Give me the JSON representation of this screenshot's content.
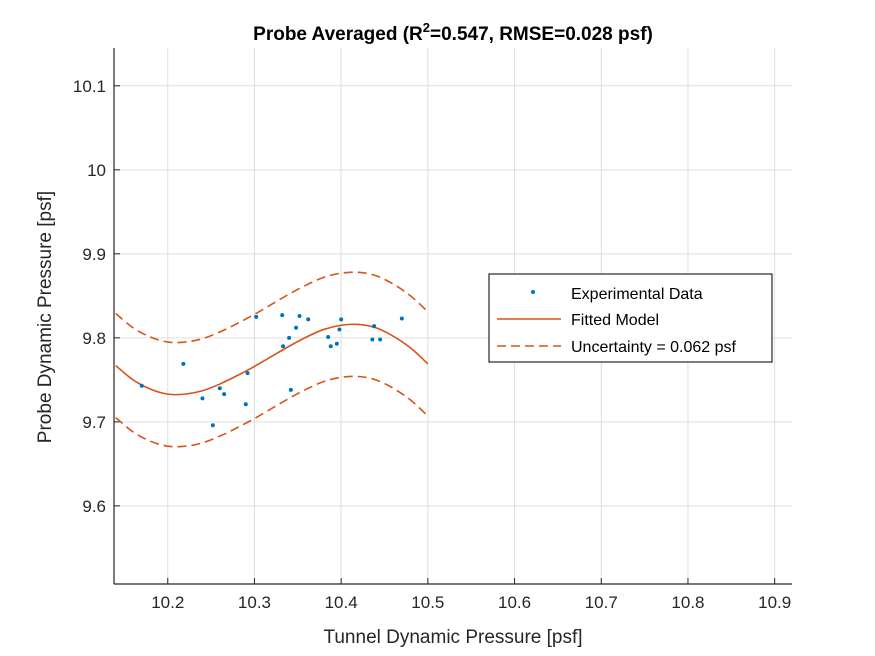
{
  "chart_data": {
    "type": "scatter",
    "title_main": "Probe Averaged (R",
    "title_sup": "2",
    "title_rest": "=0.547, RMSE=0.028 psf)",
    "xlabel": "Tunnel Dynamic Pressure [psf]",
    "ylabel": "Probe Dynamic Pressure [psf]",
    "xlim": [
      10.138,
      10.92
    ],
    "ylim": [
      9.507,
      10.145
    ],
    "xticks": [
      "10.2",
      "10.3",
      "10.4",
      "10.5",
      "10.6",
      "10.7",
      "10.8",
      "10.9"
    ],
    "xtick_values": [
      10.2,
      10.3,
      10.4,
      10.5,
      10.6,
      10.7,
      10.8,
      10.9
    ],
    "yticks": [
      "9.6",
      "9.7",
      "9.8",
      "9.9",
      "10",
      "10.1"
    ],
    "ytick_values": [
      9.6,
      9.7,
      9.8,
      9.9,
      10.0,
      10.1
    ],
    "grid": true,
    "legend_position": "right",
    "colors": {
      "data": "#0072BD",
      "model": "#D95319",
      "axis": "#262626",
      "grid": "#DFDFDF"
    },
    "series": [
      {
        "name": "Experimental Data",
        "kind": "points",
        "x": [
          10.17,
          10.218,
          10.24,
          10.252,
          10.26,
          10.265,
          10.29,
          10.292,
          10.302,
          10.332,
          10.333,
          10.34,
          10.342,
          10.348,
          10.352,
          10.362,
          10.385,
          10.388,
          10.395,
          10.398,
          10.4,
          10.436,
          10.438,
          10.445,
          10.47
        ],
        "y": [
          9.743,
          9.769,
          9.728,
          9.696,
          9.74,
          9.733,
          9.721,
          9.758,
          9.825,
          9.827,
          9.79,
          9.8,
          9.738,
          9.812,
          9.826,
          9.822,
          9.801,
          9.79,
          9.793,
          9.81,
          9.822,
          9.798,
          9.814,
          9.798,
          9.823
        ]
      },
      {
        "name": "Fitted Model",
        "kind": "line",
        "x": [
          10.14,
          10.16,
          10.18,
          10.2,
          10.22,
          10.24,
          10.26,
          10.28,
          10.3,
          10.32,
          10.34,
          10.36,
          10.38,
          10.4,
          10.42,
          10.44,
          10.46,
          10.48,
          10.5
        ],
        "y": [
          9.767,
          9.75,
          9.739,
          9.733,
          9.733,
          9.737,
          9.745,
          9.755,
          9.766,
          9.778,
          9.79,
          9.801,
          9.81,
          9.815,
          9.816,
          9.812,
          9.802,
          9.788,
          9.769
        ]
      },
      {
        "name": "Uncertainty = 0.062 psf",
        "kind": "band",
        "x": [
          10.14,
          10.16,
          10.18,
          10.2,
          10.22,
          10.24,
          10.26,
          10.28,
          10.3,
          10.32,
          10.34,
          10.36,
          10.38,
          10.4,
          10.42,
          10.44,
          10.46,
          10.48,
          10.5
        ],
        "upper": [
          9.829,
          9.812,
          9.801,
          9.795,
          9.795,
          9.799,
          9.807,
          9.817,
          9.828,
          9.84,
          9.852,
          9.863,
          9.872,
          9.877,
          9.878,
          9.874,
          9.864,
          9.85,
          9.831
        ],
        "lower": [
          9.705,
          9.688,
          9.677,
          9.671,
          9.671,
          9.675,
          9.683,
          9.693,
          9.704,
          9.716,
          9.728,
          9.739,
          9.748,
          9.753,
          9.754,
          9.75,
          9.74,
          9.726,
          9.707
        ]
      }
    ]
  }
}
